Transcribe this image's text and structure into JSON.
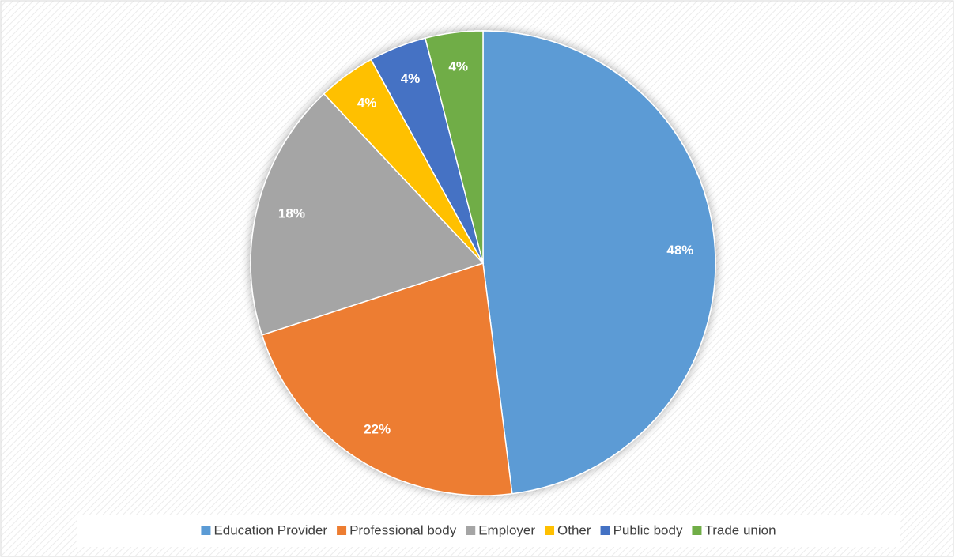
{
  "chart_data": {
    "type": "pie",
    "categories": [
      "Education Provider",
      "Professional body",
      "Employer",
      "Other",
      "Public body",
      "Trade union"
    ],
    "values": [
      48,
      22,
      18,
      4,
      4,
      4
    ],
    "value_labels": [
      "48%",
      "22%",
      "18%",
      "4%",
      "4%",
      "4%"
    ],
    "colors": [
      "#5b9bd5",
      "#ed7d31",
      "#a5a5a5",
      "#ffc000",
      "#4472c4",
      "#70ad47"
    ],
    "legend": "bottom"
  }
}
